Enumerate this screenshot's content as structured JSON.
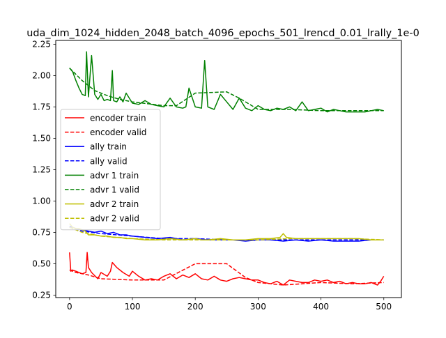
{
  "chart_data": {
    "type": "line",
    "title": "uda_dim_1024_hidden_2048_batch_4096_epochs_501_lrencd_0.01_lrally_1e-0",
    "xlabel": "",
    "ylabel": "",
    "xlim": [
      -22,
      528
    ],
    "ylim": [
      0.23,
      2.28
    ],
    "xticks": [
      0,
      100,
      200,
      300,
      400,
      500
    ],
    "yticks": [
      0.25,
      0.5,
      0.75,
      1.0,
      1.25,
      1.5,
      1.75,
      2.0,
      2.25
    ],
    "xtick_labels": [
      "0",
      "100",
      "200",
      "300",
      "400",
      "500"
    ],
    "ytick_labels": [
      "0.25",
      "0.50",
      "0.75",
      "1.00",
      "1.25",
      "1.50",
      "1.75",
      "2.00",
      "2.25"
    ],
    "grid": false,
    "legend_position": "center-left",
    "series": [
      {
        "name": "encoder train",
        "color": "#ff0000",
        "style": "solid",
        "x": [
          0,
          2,
          4,
          10,
          20,
          26,
          28,
          30,
          35,
          45,
          50,
          60,
          65,
          68,
          75,
          85,
          95,
          100,
          110,
          120,
          130,
          140,
          150,
          160,
          170,
          180,
          190,
          200,
          210,
          220,
          230,
          240,
          250,
          260,
          270,
          280,
          290,
          300,
          310,
          320,
          330,
          340,
          350,
          360,
          370,
          380,
          390,
          400,
          410,
          420,
          430,
          440,
          450,
          460,
          470,
          480,
          490,
          495,
          500
        ],
        "y": [
          0.59,
          0.44,
          0.45,
          0.44,
          0.42,
          0.43,
          0.59,
          0.47,
          0.43,
          0.38,
          0.43,
          0.4,
          0.44,
          0.51,
          0.47,
          0.43,
          0.4,
          0.44,
          0.4,
          0.37,
          0.38,
          0.37,
          0.4,
          0.42,
          0.38,
          0.41,
          0.39,
          0.42,
          0.38,
          0.37,
          0.4,
          0.37,
          0.36,
          0.38,
          0.39,
          0.38,
          0.37,
          0.37,
          0.35,
          0.34,
          0.36,
          0.33,
          0.37,
          0.36,
          0.35,
          0.35,
          0.37,
          0.36,
          0.37,
          0.35,
          0.36,
          0.34,
          0.35,
          0.34,
          0.34,
          0.35,
          0.33,
          0.36,
          0.4
        ]
      },
      {
        "name": "encoder valid",
        "color": "#ff0000",
        "style": "dashed",
        "x": [
          0,
          10,
          30,
          50,
          100,
          150,
          200,
          250,
          280,
          300,
          340,
          400,
          450,
          500
        ],
        "y": [
          0.45,
          0.43,
          0.41,
          0.38,
          0.37,
          0.37,
          0.5,
          0.5,
          0.39,
          0.35,
          0.33,
          0.35,
          0.34,
          0.35
        ]
      },
      {
        "name": "ally train",
        "color": "#0000ff",
        "style": "solid",
        "x": [
          0,
          5,
          10,
          20,
          30,
          40,
          50,
          60,
          70,
          80,
          90,
          100,
          120,
          140,
          160,
          180,
          200,
          220,
          240,
          260,
          280,
          300,
          320,
          340,
          360,
          380,
          400,
          420,
          440,
          460,
          480,
          500
        ],
        "y": [
          0.8,
          0.79,
          0.78,
          0.77,
          0.76,
          0.75,
          0.76,
          0.74,
          0.75,
          0.73,
          0.73,
          0.72,
          0.71,
          0.7,
          0.71,
          0.69,
          0.7,
          0.69,
          0.69,
          0.69,
          0.68,
          0.69,
          0.69,
          0.68,
          0.69,
          0.68,
          0.69,
          0.68,
          0.68,
          0.68,
          0.69,
          0.69
        ]
      },
      {
        "name": "ally valid",
        "color": "#0000ff",
        "style": "dashed",
        "x": [
          0,
          20,
          50,
          100,
          150,
          200,
          250,
          300,
          400,
          500
        ],
        "y": [
          0.79,
          0.76,
          0.74,
          0.72,
          0.7,
          0.7,
          0.69,
          0.69,
          0.69,
          0.69
        ]
      },
      {
        "name": "advr 1 train",
        "color": "#008000",
        "style": "solid",
        "x": [
          0,
          5,
          10,
          15,
          20,
          25,
          27,
          30,
          35,
          40,
          45,
          50,
          55,
          60,
          65,
          68,
          70,
          75,
          80,
          85,
          90,
          100,
          110,
          120,
          130,
          140,
          150,
          160,
          170,
          180,
          185,
          190,
          200,
          210,
          215,
          220,
          230,
          240,
          250,
          260,
          270,
          280,
          290,
          300,
          310,
          320,
          330,
          340,
          350,
          360,
          370,
          380,
          390,
          400,
          410,
          420,
          430,
          440,
          450,
          460,
          470,
          480,
          490,
          500
        ],
        "y": [
          2.06,
          2.03,
          1.96,
          1.9,
          1.85,
          1.84,
          2.19,
          1.83,
          2.16,
          1.85,
          1.81,
          1.85,
          1.8,
          1.81,
          1.8,
          2.04,
          1.8,
          1.79,
          1.83,
          1.79,
          1.86,
          1.78,
          1.77,
          1.8,
          1.77,
          1.76,
          1.75,
          1.82,
          1.75,
          1.74,
          1.75,
          1.9,
          1.75,
          1.74,
          2.12,
          1.75,
          1.73,
          1.85,
          1.79,
          1.73,
          1.82,
          1.74,
          1.72,
          1.76,
          1.73,
          1.72,
          1.74,
          1.73,
          1.75,
          1.72,
          1.79,
          1.72,
          1.73,
          1.74,
          1.71,
          1.73,
          1.72,
          1.71,
          1.71,
          1.71,
          1.71,
          1.72,
          1.73,
          1.72
        ]
      },
      {
        "name": "advr 1 valid",
        "color": "#008000",
        "style": "dashed",
        "x": [
          0,
          20,
          40,
          60,
          80,
          100,
          150,
          170,
          200,
          250,
          270,
          300,
          350,
          400,
          450,
          500
        ],
        "y": [
          2.06,
          1.96,
          1.88,
          1.84,
          1.81,
          1.79,
          1.76,
          1.76,
          1.86,
          1.87,
          1.82,
          1.73,
          1.73,
          1.72,
          1.72,
          1.72
        ]
      },
      {
        "name": "advr 2 train",
        "color": "#bfbf00",
        "style": "solid",
        "x": [
          0,
          5,
          10,
          15,
          20,
          25,
          30,
          40,
          50,
          60,
          70,
          80,
          90,
          100,
          120,
          140,
          160,
          180,
          200,
          210,
          220,
          240,
          260,
          280,
          300,
          320,
          335,
          340,
          345,
          360,
          380,
          400,
          420,
          440,
          460,
          480,
          500
        ],
        "y": [
          0.82,
          0.79,
          0.78,
          0.78,
          0.77,
          0.76,
          0.73,
          0.73,
          0.72,
          0.72,
          0.71,
          0.71,
          0.7,
          0.7,
          0.69,
          0.69,
          0.7,
          0.69,
          0.7,
          0.69,
          0.69,
          0.7,
          0.69,
          0.69,
          0.7,
          0.7,
          0.71,
          0.74,
          0.71,
          0.7,
          0.7,
          0.7,
          0.7,
          0.7,
          0.7,
          0.69,
          0.69
        ]
      },
      {
        "name": "advr 2 valid",
        "color": "#bfbf00",
        "style": "dashed",
        "x": [
          0,
          20,
          50,
          100,
          150,
          200,
          250,
          300,
          350,
          400,
          450,
          500
        ],
        "y": [
          0.79,
          0.75,
          0.72,
          0.7,
          0.69,
          0.69,
          0.69,
          0.69,
          0.7,
          0.7,
          0.7,
          0.69
        ]
      }
    ]
  }
}
